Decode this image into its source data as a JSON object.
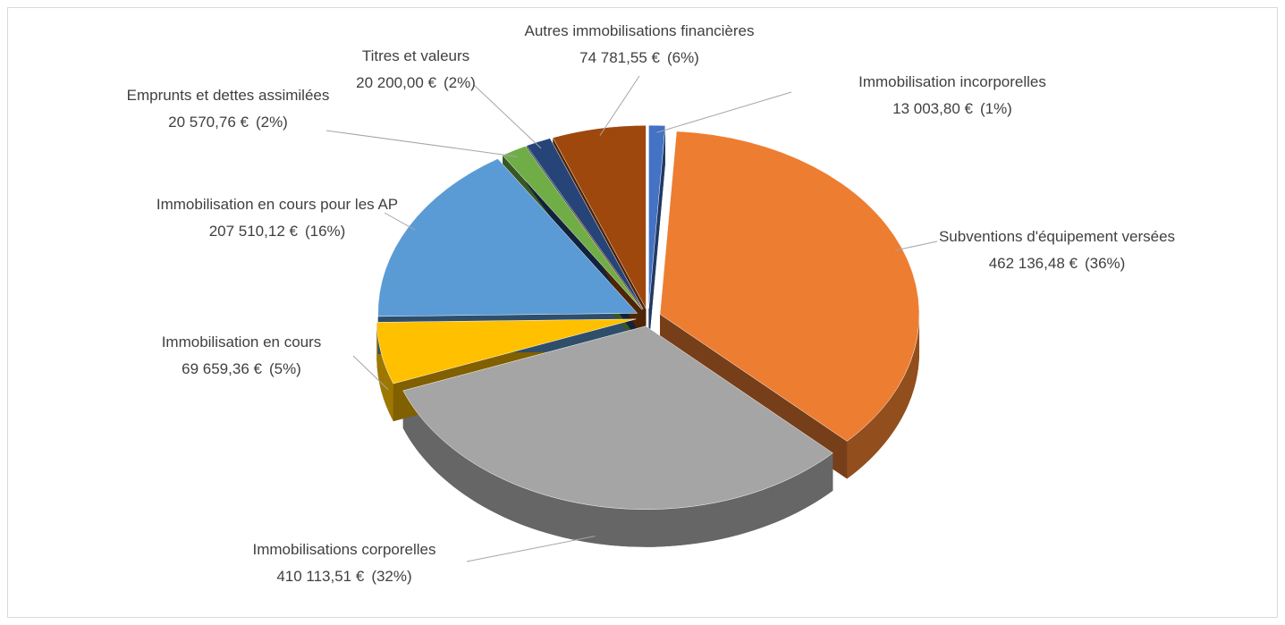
{
  "chart_data": {
    "type": "pie3d",
    "categories": [
      "Immobilisation incorporelles",
      "Subventions d'équipement versées",
      "Immobilisations corporelles",
      "Immobilisation en cours",
      "Immobilisation en cours pour les AP",
      "Emprunts et dettes assimilées",
      "Titres et valeurs",
      "Autres immobilisations financières"
    ],
    "values": [
      13003.8,
      462136.48,
      410113.51,
      69659.36,
      207510.12,
      20570.76,
      20200.0,
      74781.55
    ],
    "value_labels": [
      "13 003,80 €",
      "462 136,48 €",
      "410 113,51 €",
      "69 659,36 €",
      "207 510,12 €",
      "20 570,76 €",
      "20 200,00 €",
      "74 781,55 €"
    ],
    "percents": [
      1,
      36,
      32,
      5,
      16,
      2,
      2,
      6
    ],
    "percent_labels": [
      "(1%)",
      "(36%)",
      "(32%)",
      "(5%)",
      "(16%)",
      "(2%)",
      "(2%)",
      "(6%)"
    ],
    "colors": [
      "#4472c4",
      "#ed7d31",
      "#a5a5a5",
      "#ffc000",
      "#5b9bd5",
      "#70ad47",
      "#264478",
      "#9e480e"
    ]
  }
}
